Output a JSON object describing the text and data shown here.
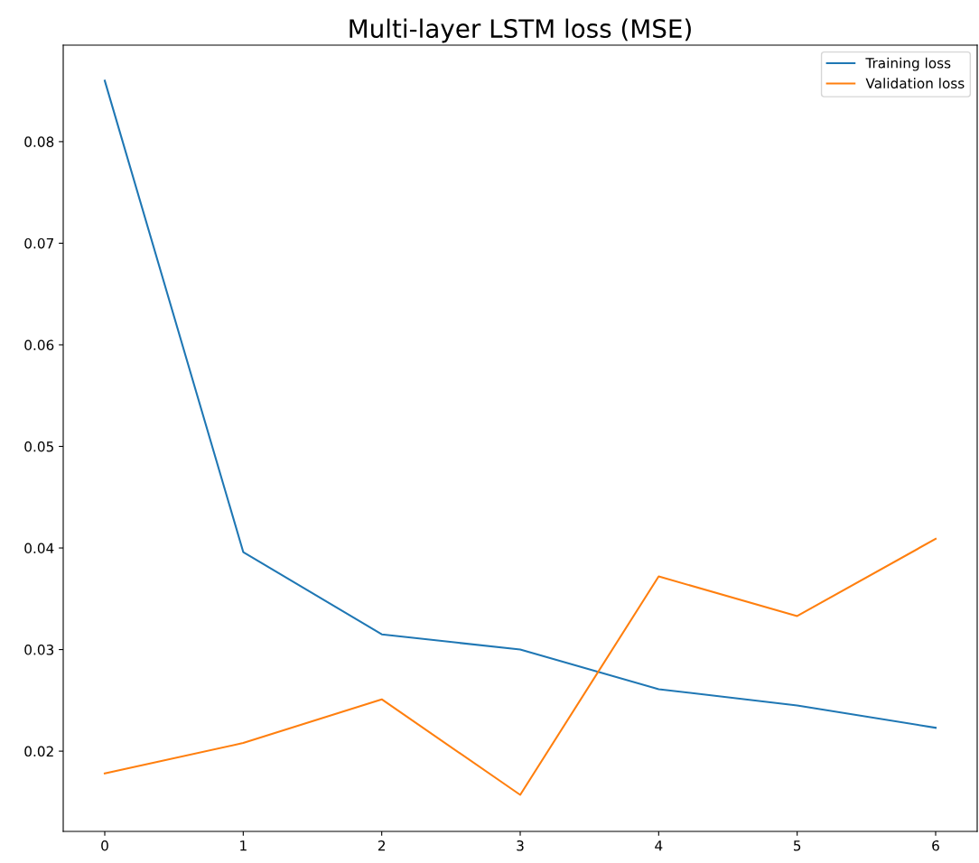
{
  "chart_data": {
    "type": "line",
    "title": "Multi-layer LSTM loss (MSE)",
    "x": [
      0,
      1,
      2,
      3,
      4,
      5,
      6
    ],
    "series": [
      {
        "name": "Training loss",
        "color": "#1f77b4",
        "values": [
          0.086,
          0.0396,
          0.0315,
          0.03,
          0.0261,
          0.0245,
          0.0223
        ]
      },
      {
        "name": "Validation loss",
        "color": "#ff7f0e",
        "values": [
          0.0178,
          0.0208,
          0.0251,
          0.0157,
          0.0372,
          0.0333,
          0.0409
        ]
      }
    ],
    "xlim": [
      -0.3,
      6.3
    ],
    "xticks": [
      0,
      1,
      2,
      3,
      4,
      5,
      6
    ],
    "ylim": [
      0.0121,
      0.0895
    ],
    "yticks": [
      {
        "value": 0.02,
        "label": "0.02"
      },
      {
        "value": 0.03,
        "label": "0.03"
      },
      {
        "value": 0.04,
        "label": "0.04"
      },
      {
        "value": 0.05,
        "label": "0.05"
      },
      {
        "value": 0.06,
        "label": "0.06"
      },
      {
        "value": 0.07,
        "label": "0.07"
      },
      {
        "value": 0.08,
        "label": "0.08"
      }
    ],
    "grid": false,
    "legend": "top right",
    "marker": "none",
    "line_style": "solid"
  }
}
